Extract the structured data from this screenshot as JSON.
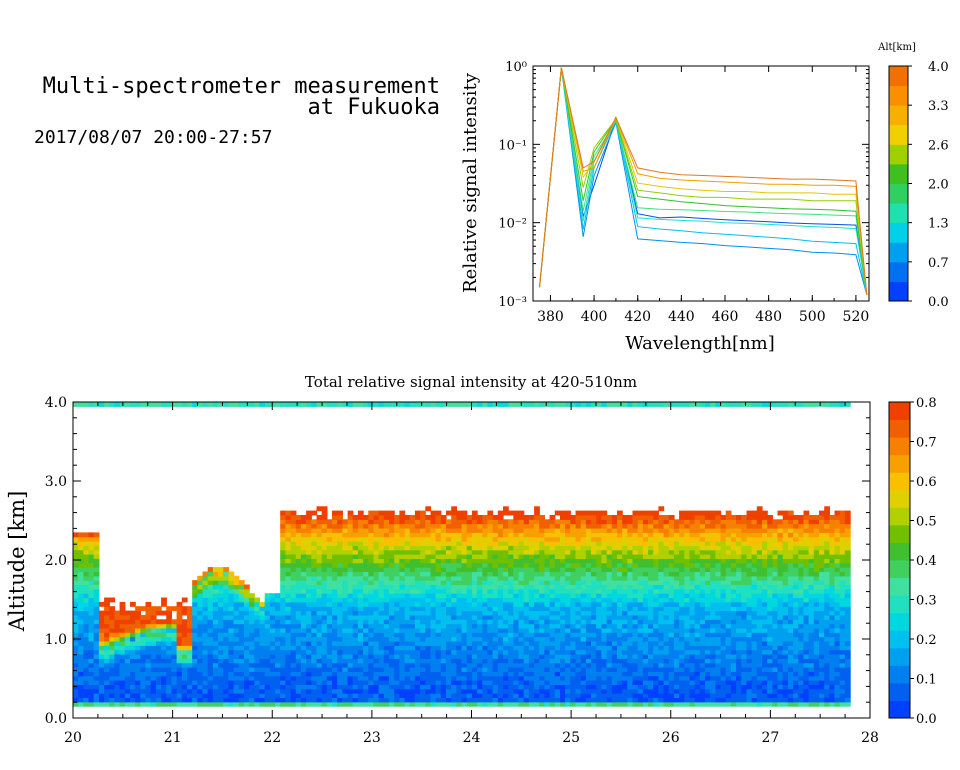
{
  "header": {
    "title_line1": "Multi-spectrometer measurement",
    "title_line2": "at Fukuoka",
    "datetime": "2017/08/07 20:00-27:57"
  },
  "chart_data": [
    {
      "type": "line",
      "xlabel": "Wavelength[nm]",
      "ylabel": "Relative signal intensity",
      "y_scale": "log",
      "xlim": [
        372,
        526
      ],
      "ylim": [
        0.001,
        1
      ],
      "x_ticks": [
        "380",
        "400",
        "420",
        "440",
        "460",
        "480",
        "500",
        "520"
      ],
      "y_ticks": [
        "10⁻³",
        "10⁻²",
        "10⁻¹",
        "10⁰"
      ],
      "x": [
        375,
        385,
        395,
        400,
        410,
        420,
        430,
        440,
        450,
        460,
        470,
        480,
        490,
        500,
        510,
        520,
        525
      ],
      "series": [
        {
          "color": "#0050e6",
          "values": [
            0.0015,
            0.95,
            0.012,
            0.03,
            0.21,
            0.013,
            0.0115,
            0.0118,
            0.0113,
            0.0109,
            0.0106,
            0.0103,
            0.0099,
            0.0097,
            0.0095,
            0.0093,
            0.0012
          ]
        },
        {
          "color": "#0090f0",
          "values": [
            0.0015,
            0.95,
            0.0066,
            0.04,
            0.19,
            0.0062,
            0.0059,
            0.0056,
            0.0054,
            0.0051,
            0.0049,
            0.0047,
            0.0045,
            0.0042,
            0.0041,
            0.0039,
            0.0012
          ]
        },
        {
          "color": "#00c0f0",
          "values": [
            0.0015,
            0.95,
            0.0082,
            0.05,
            0.2,
            0.0089,
            0.0083,
            0.0079,
            0.0074,
            0.0071,
            0.0068,
            0.0065,
            0.0062,
            0.0058,
            0.0056,
            0.0054,
            0.0012
          ]
        },
        {
          "color": "#20e0c8",
          "values": [
            0.0015,
            0.95,
            0.0105,
            0.06,
            0.2,
            0.0115,
            0.011,
            0.0107,
            0.0104,
            0.01,
            0.0098,
            0.0095,
            0.0092,
            0.0089,
            0.0087,
            0.0084,
            0.0012
          ]
        },
        {
          "color": "#40e080",
          "values": [
            0.0015,
            0.95,
            0.014,
            0.07,
            0.2,
            0.0155,
            0.0148,
            0.0146,
            0.0143,
            0.0139,
            0.0137,
            0.0133,
            0.013,
            0.0128,
            0.0125,
            0.0122,
            0.0012
          ]
        },
        {
          "color": "#30c030",
          "values": [
            0.0015,
            0.95,
            0.019,
            0.08,
            0.21,
            0.0215,
            0.02,
            0.0185,
            0.0175,
            0.0165,
            0.016,
            0.0155,
            0.015,
            0.0148,
            0.0145,
            0.014,
            0.0012
          ]
        },
        {
          "color": "#90d000",
          "values": [
            0.0015,
            0.95,
            0.028,
            0.09,
            0.21,
            0.026,
            0.024,
            0.022,
            0.021,
            0.021,
            0.02,
            0.02,
            0.02,
            0.019,
            0.019,
            0.019,
            0.0012
          ]
        },
        {
          "color": "#e0c800",
          "values": [
            0.0015,
            0.95,
            0.038,
            0.06,
            0.22,
            0.032,
            0.029,
            0.027,
            0.026,
            0.025,
            0.025,
            0.024,
            0.024,
            0.024,
            0.023,
            0.023,
            0.0012
          ]
        },
        {
          "color": "#f0a000",
          "values": [
            0.0015,
            0.95,
            0.045,
            0.05,
            0.22,
            0.042,
            0.037,
            0.035,
            0.034,
            0.033,
            0.032,
            0.031,
            0.031,
            0.03,
            0.03,
            0.029,
            0.0012
          ]
        },
        {
          "color": "#e07820",
          "values": [
            0.0015,
            0.95,
            0.05,
            0.06,
            0.22,
            0.05,
            0.044,
            0.041,
            0.04,
            0.039,
            0.038,
            0.037,
            0.036,
            0.036,
            0.035,
            0.034,
            0.0012
          ]
        }
      ]
    },
    {
      "type": "heatmap",
      "title": "Total relative signal intensity at 420-510nm",
      "ylabel": "Altitude [km]",
      "xlim": [
        20,
        28
      ],
      "ylim": [
        0,
        4
      ],
      "x_ticks": [
        "20",
        "21",
        "22",
        "23",
        "24",
        "25",
        "26",
        "27",
        "28"
      ],
      "y_ticks": [
        "0.0",
        "1.0",
        "2.0",
        "3.0",
        "4.0"
      ],
      "data_x_range": [
        20.0,
        27.8
      ],
      "data_y_range": [
        0.15,
        4.0
      ],
      "value_range": [
        0.0,
        0.8
      ],
      "note_white": "values above 0.8 shown white"
    }
  ],
  "colorbar_top": {
    "label": "Alt[km]",
    "ticks": [
      "4.0",
      "3.3",
      "2.6",
      "2.0",
      "1.3",
      "0.7",
      "0.0"
    ],
    "colors": [
      "#0040ff",
      "#0070f0",
      "#00a0f0",
      "#00d0e8",
      "#20e0b0",
      "#30d060",
      "#40c020",
      "#a0d000",
      "#f0d000",
      "#f8b000",
      "#f89000",
      "#f07000"
    ]
  },
  "colorbar_bottom": {
    "ticks": [
      "0.8",
      "0.7",
      "0.6",
      "0.5",
      "0.4",
      "0.3",
      "0.2",
      "0.1",
      "0.0"
    ],
    "colors": [
      "#0040ff",
      "#0060f0",
      "#0080f0",
      "#00a0f0",
      "#00c0f0",
      "#00d8e0",
      "#20e0c0",
      "#40e0a0",
      "#40d060",
      "#40c030",
      "#70c000",
      "#b0d000",
      "#e0d000",
      "#f8c000",
      "#f8a000",
      "#f88000",
      "#f06000",
      "#f04000"
    ]
  }
}
